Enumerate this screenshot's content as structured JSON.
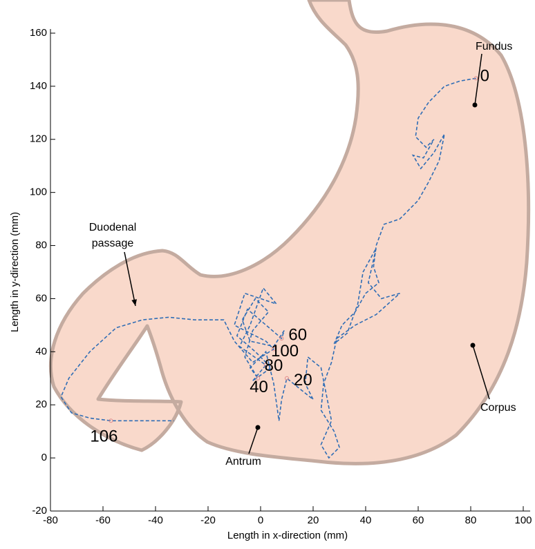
{
  "chart_data": {
    "type": "trajectory",
    "xlabel": "Length in x-direction (mm)",
    "ylabel": "Length in y-direction (mm)",
    "xlim": [
      -80,
      100
    ],
    "xticks": [
      -80,
      -60,
      -40,
      -20,
      0,
      20,
      40,
      60,
      80,
      100
    ],
    "ylim": [
      -20,
      160
    ],
    "yticks": [
      -20,
      0,
      20,
      40,
      60,
      80,
      100,
      120,
      140,
      160
    ],
    "series": [
      {
        "color": "#2f6db5",
        "x": [
          82,
          76,
          70,
          64,
          60,
          59,
          63,
          66,
          62,
          58,
          61,
          66,
          70,
          68,
          64,
          60,
          53,
          47,
          44,
          43,
          45,
          40,
          36,
          31,
          28,
          33,
          37,
          39,
          44,
          41,
          46,
          53,
          44,
          36,
          29,
          27,
          24,
          23,
          28,
          30,
          26,
          23,
          27,
          25,
          23,
          18,
          17,
          20,
          15,
          10,
          8,
          7,
          5,
          2,
          -4,
          -1,
          -6,
          -3,
          3,
          -2,
          -7,
          -4,
          5,
          9,
          8,
          -5,
          -9,
          -2,
          4,
          -3,
          2,
          -8,
          -4,
          1,
          6,
          -6,
          -10,
          2,
          5,
          -3,
          -10,
          -14,
          -25,
          -35,
          -45,
          -55,
          -65,
          -73,
          -76,
          -72,
          -65,
          -57,
          -45,
          -33
        ],
        "y": [
          143,
          142,
          140,
          134,
          128,
          121,
          117,
          120,
          113,
          114,
          109,
          115,
          122,
          112,
          104,
          97,
          90,
          88,
          80,
          72,
          66,
          62,
          55,
          50,
          43,
          47,
          58,
          70,
          79,
          66,
          60,
          62,
          54,
          50,
          45,
          36,
          28,
          18,
          10,
          4,
          0,
          5,
          14,
          24,
          34,
          38,
          28,
          22,
          26,
          30,
          22,
          14,
          28,
          40,
          34,
          30,
          38,
          48,
          55,
          60,
          52,
          44,
          42,
          48,
          45,
          56,
          46,
          40,
          34,
          29,
          35,
          42,
          50,
          64,
          58,
          62,
          50,
          44,
          41,
          36,
          44,
          52,
          52,
          53,
          52,
          49,
          40,
          30,
          23,
          17,
          15,
          14,
          14,
          14
        ]
      }
    ],
    "markers": {
      "color": "#e08a8a",
      "x": [
        82,
        10,
        -1,
        8,
        2,
        5,
        -57
      ],
      "y": [
        143,
        30,
        30,
        45,
        35,
        41,
        14
      ],
      "time": [
        0,
        20,
        40,
        60,
        80,
        100,
        106
      ]
    },
    "annotations": [
      {
        "text": "Fundus"
      },
      {
        "text": "Corpus"
      },
      {
        "text": "Antrum"
      },
      {
        "text": "Duodenal"
      },
      {
        "text": "passage"
      }
    ]
  }
}
